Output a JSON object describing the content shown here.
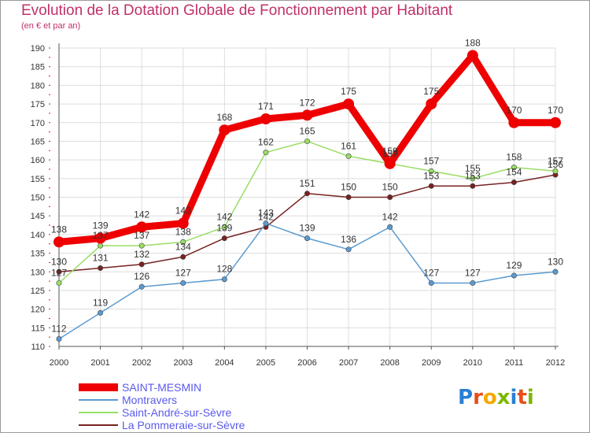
{
  "title": "Evolution de la Dotation Globale de Fonctionnement par Habitant",
  "subtitle": "(en € et par an)",
  "logo": "Proxiti",
  "colors": {
    "title": "#c0306a",
    "legend_text": "#5a5aee",
    "axis": "#555555",
    "grid": "#dddddd",
    "tick": "#cc2222"
  },
  "chart_data": {
    "type": "line",
    "x": [
      "2000",
      "2001",
      "2002",
      "2003",
      "2004",
      "2005",
      "2006",
      "2007",
      "2008",
      "2009",
      "2010",
      "2011",
      "2012"
    ],
    "ylim": [
      110,
      190
    ],
    "yticks": [
      110,
      115,
      120,
      125,
      130,
      135,
      140,
      145,
      150,
      155,
      160,
      165,
      170,
      175,
      180,
      185,
      190
    ],
    "grid": true,
    "legend_position": "bottom-left",
    "series": [
      {
        "name": "SAINT-MESMIN",
        "color": "#ee0000",
        "values": [
          138,
          139,
          142,
          143,
          168,
          171,
          172,
          175,
          159,
          175,
          188,
          170,
          170
        ]
      },
      {
        "name": "Montravers",
        "color": "#5b9bd0",
        "values": [
          112,
          119,
          126,
          127,
          128,
          143,
          139,
          136,
          142,
          127,
          127,
          129,
          130
        ]
      },
      {
        "name": "Saint-André-sur-Sèvre",
        "color": "#99dd66",
        "values": [
          127,
          137,
          137,
          138,
          142,
          162,
          165,
          161,
          159,
          157,
          155,
          158,
          157
        ]
      },
      {
        "name": "La Pommeraie-sur-Sèvre",
        "color": "#772222",
        "values": [
          130,
          131,
          132,
          134,
          139,
          142,
          151,
          150,
          150,
          153,
          153,
          154,
          156
        ]
      }
    ]
  }
}
